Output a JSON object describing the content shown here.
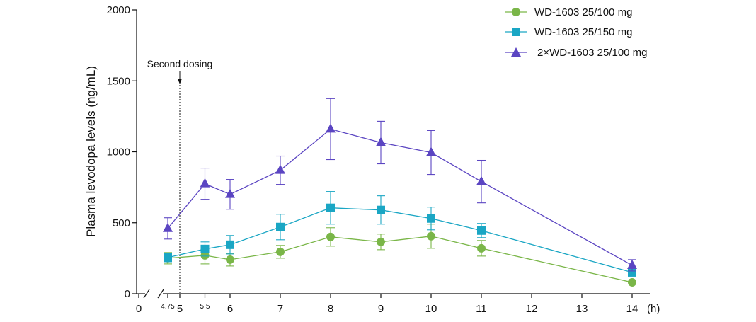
{
  "chart_data": {
    "type": "line",
    "title": "",
    "xlabel": "(h)",
    "ylabel": "Plasma levodopa levels (ng/mL)",
    "ylim": [
      0,
      2000
    ],
    "xlim": [
      0,
      14
    ],
    "x_axis_break": [
      0,
      4.75
    ],
    "x_ticks": [
      0,
      4.75,
      5,
      5.5,
      6,
      7,
      8,
      9,
      10,
      11,
      12,
      13,
      14
    ],
    "x_tick_labels": [
      "0",
      "4.75",
      "5",
      "5.5",
      "6",
      "7",
      "8",
      "9",
      "10",
      "11",
      "12",
      "13",
      "14"
    ],
    "y_ticks": [
      0,
      500,
      1000,
      1500,
      2000
    ],
    "y_tick_labels": [
      "0",
      "500",
      "1000",
      "1500",
      "2000"
    ],
    "grid": false,
    "legend_position": "top-right",
    "annotation": {
      "text": "Second dosing",
      "x": 5
    },
    "series": [
      {
        "name": "WD-1603 25/100 mg",
        "color": "#7ab648",
        "marker": "circle",
        "x": [
          4.75,
          5.5,
          6,
          7,
          8,
          9,
          10,
          11,
          14
        ],
        "values": [
          250,
          270,
          240,
          295,
          400,
          365,
          405,
          320,
          80
        ],
        "errors": [
          40,
          60,
          45,
          45,
          65,
          55,
          85,
          55,
          0
        ]
      },
      {
        "name": "WD-1603 25/150 mg",
        "color": "#1aa6c4",
        "marker": "square",
        "x": [
          4.75,
          5.5,
          6,
          7,
          8,
          9,
          10,
          11,
          14
        ],
        "values": [
          255,
          315,
          345,
          470,
          605,
          590,
          530,
          445,
          150
        ],
        "errors": [
          30,
          50,
          65,
          90,
          115,
          100,
          80,
          50,
          0
        ]
      },
      {
        "name": "2×WD-1603 25/100 mg",
        "color": "#5b45c2",
        "marker": "triangle",
        "x": [
          4.75,
          5.5,
          6,
          7,
          8,
          9,
          10,
          11,
          14
        ],
        "values": [
          460,
          775,
          700,
          870,
          1160,
          1065,
          995,
          790,
          200
        ],
        "errors": [
          75,
          110,
          105,
          100,
          215,
          150,
          155,
          150,
          40
        ]
      }
    ]
  }
}
